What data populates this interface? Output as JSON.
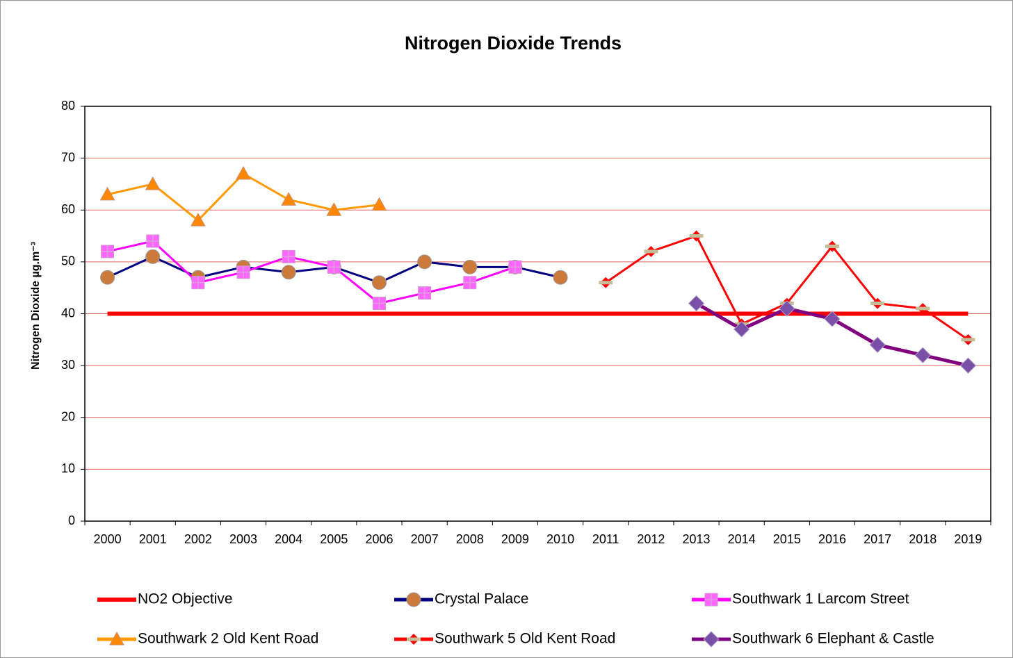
{
  "chart_data": {
    "type": "line",
    "title": "Nitrogen Dioxide Trends",
    "y_label": "Nitrogen Dioxide µg.m⁻³",
    "categories": [
      "2000",
      "2001",
      "2002",
      "2003",
      "2004",
      "2005",
      "2006",
      "2007",
      "2008",
      "2009",
      "2010",
      "2011",
      "2012",
      "2013",
      "2014",
      "2015",
      "2016",
      "2017",
      "2018",
      "2019"
    ],
    "ylim": [
      0,
      80
    ],
    "yticks": [
      0,
      10,
      20,
      30,
      40,
      50,
      60,
      70,
      80
    ],
    "grid": true,
    "grid_color": "#e06060",
    "legend": "bottom",
    "series": [
      {
        "name": "NO2 Objective",
        "color": "#ff0000",
        "width": 6,
        "marker": "none",
        "marker_color": "#ff0000",
        "values": [
          40,
          40,
          40,
          40,
          40,
          40,
          40,
          40,
          40,
          40,
          40,
          40,
          40,
          40,
          40,
          40,
          40,
          40,
          40,
          40
        ]
      },
      {
        "name": "Crystal Palace",
        "color": "#000080",
        "width": 3,
        "marker": "circle",
        "marker_color": "#cc7a3c",
        "values": [
          47,
          51,
          47,
          49,
          48,
          49,
          46,
          50,
          49,
          49,
          47,
          null,
          null,
          null,
          null,
          null,
          null,
          null,
          null,
          null
        ]
      },
      {
        "name": "Southwark 1 Larcom Street",
        "color": "#ff00ff",
        "width": 3,
        "marker": "square",
        "marker_color": "#ff66ff",
        "values": [
          52,
          54,
          46,
          48,
          51,
          49,
          42,
          44,
          46,
          49,
          null,
          null,
          null,
          null,
          null,
          null,
          null,
          null,
          null,
          null
        ]
      },
      {
        "name": "Southwark 2 Old Kent Road",
        "color": "#ff9900",
        "width": 3,
        "marker": "triangle",
        "marker_color": "#ff8800",
        "values": [
          63,
          65,
          58,
          67,
          62,
          60,
          61,
          null,
          null,
          null,
          null,
          null,
          null,
          null,
          null,
          null,
          null,
          null,
          null,
          null
        ]
      },
      {
        "name": "Southwark 5 Old Kent Road",
        "color": "#ff0000",
        "width": 3,
        "marker": "dash",
        "marker_color": "#c4bd97",
        "values": [
          null,
          null,
          null,
          null,
          null,
          null,
          null,
          null,
          null,
          null,
          null,
          46,
          52,
          55,
          38,
          42,
          53,
          42,
          41,
          35
        ]
      },
      {
        "name": "Southwark 6 Elephant & Castle",
        "color": "#800080",
        "width": 5,
        "marker": "diamond",
        "marker_color": "#7a4fa8",
        "values": [
          null,
          null,
          null,
          null,
          null,
          null,
          null,
          null,
          null,
          null,
          null,
          null,
          null,
          42,
          37,
          41,
          39,
          34,
          32,
          30
        ]
      }
    ]
  }
}
